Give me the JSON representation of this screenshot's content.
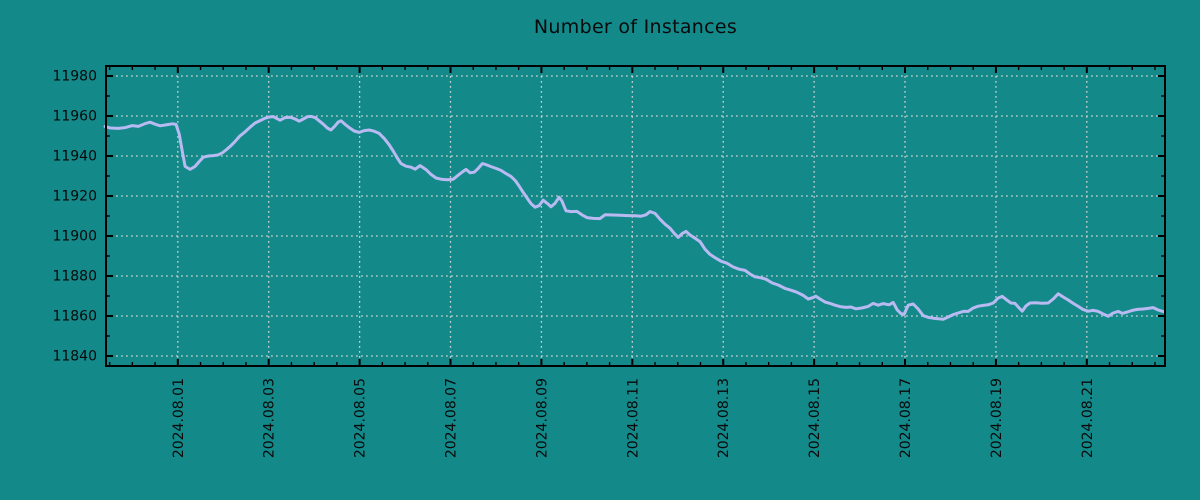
{
  "title": "Number of Instances",
  "colors": {
    "background": "#13898a",
    "line": "#b9baf2",
    "grid": "#ccd0cf",
    "axis": "#000000",
    "text": "#0a0a0a"
  },
  "chart_data": {
    "type": "line",
    "title": "Number of Instances",
    "legend": "none",
    "grid": "dotted at major ticks",
    "x_axis": {
      "unit": "days relative to 2024-08-01",
      "xlim_days": [
        -1.58,
        21.72
      ],
      "tick_days": [
        0,
        2,
        4,
        6,
        8,
        10,
        12,
        14,
        16,
        18,
        20
      ],
      "tick_labels": [
        "2024.08.01",
        "2024.08.03",
        "2024.08.05",
        "2024.08.07",
        "2024.08.09",
        "2024.08.11",
        "2024.08.13",
        "2024.08.15",
        "2024.08.17",
        "2024.08.19",
        "2024.08.21"
      ],
      "minor_step_days": 0.5,
      "label_rotation_deg": 90
    },
    "y_axis": {
      "ylim": [
        11835,
        11985
      ],
      "ticks": [
        11840,
        11860,
        11880,
        11900,
        11920,
        11940,
        11960,
        11980
      ],
      "minor_step": 10
    },
    "series": [
      {
        "name": "instances",
        "points": [
          [
            -1.6,
            11954.8
          ],
          [
            -1.49,
            11954.0
          ],
          [
            -1.31,
            11953.8
          ],
          [
            -1.16,
            11954.2
          ],
          [
            -1.0,
            11955.2
          ],
          [
            -0.87,
            11954.8
          ],
          [
            -0.72,
            11956.2
          ],
          [
            -0.61,
            11956.9
          ],
          [
            -0.5,
            11955.9
          ],
          [
            -0.39,
            11955.1
          ],
          [
            -0.23,
            11955.7
          ],
          [
            -0.12,
            11956.1
          ],
          [
            -0.04,
            11955.8
          ],
          [
            0.03,
            11951.0
          ],
          [
            0.1,
            11942.0
          ],
          [
            0.16,
            11934.8
          ],
          [
            0.27,
            11933.3
          ],
          [
            0.38,
            11934.8
          ],
          [
            0.47,
            11937.2
          ],
          [
            0.56,
            11939.4
          ],
          [
            0.67,
            11940.0
          ],
          [
            0.78,
            11940.2
          ],
          [
            0.89,
            11940.6
          ],
          [
            0.98,
            11941.6
          ],
          [
            1.06,
            11943.0
          ],
          [
            1.17,
            11945.2
          ],
          [
            1.26,
            11947.3
          ],
          [
            1.37,
            11950.1
          ],
          [
            1.48,
            11952.1
          ],
          [
            1.59,
            11954.4
          ],
          [
            1.7,
            11956.5
          ],
          [
            1.81,
            11957.7
          ],
          [
            1.92,
            11958.9
          ],
          [
            2.01,
            11959.5
          ],
          [
            2.1,
            11959.7
          ],
          [
            2.19,
            11958.6
          ],
          [
            2.25,
            11957.9
          ],
          [
            2.36,
            11959.2
          ],
          [
            2.47,
            11959.4
          ],
          [
            2.58,
            11958.5
          ],
          [
            2.67,
            11957.4
          ],
          [
            2.76,
            11958.5
          ],
          [
            2.85,
            11959.6
          ],
          [
            2.93,
            11959.8
          ],
          [
            3.02,
            11959.2
          ],
          [
            3.11,
            11957.6
          ],
          [
            3.2,
            11955.9
          ],
          [
            3.29,
            11954.0
          ],
          [
            3.37,
            11953.0
          ],
          [
            3.44,
            11954.6
          ],
          [
            3.53,
            11957.0
          ],
          [
            3.59,
            11957.6
          ],
          [
            3.68,
            11955.8
          ],
          [
            3.77,
            11954.2
          ],
          [
            3.88,
            11952.5
          ],
          [
            3.99,
            11951.8
          ],
          [
            4.1,
            11952.7
          ],
          [
            4.21,
            11953.0
          ],
          [
            4.32,
            11952.4
          ],
          [
            4.43,
            11951.3
          ],
          [
            4.54,
            11948.8
          ],
          [
            4.65,
            11945.6
          ],
          [
            4.74,
            11942.5
          ],
          [
            4.83,
            11939.0
          ],
          [
            4.91,
            11936.2
          ],
          [
            5.02,
            11934.9
          ],
          [
            5.13,
            11934.4
          ],
          [
            5.22,
            11933.4
          ],
          [
            5.33,
            11935.2
          ],
          [
            5.46,
            11933.2
          ],
          [
            5.57,
            11930.8
          ],
          [
            5.68,
            11929.0
          ],
          [
            5.79,
            11928.4
          ],
          [
            5.93,
            11928.1
          ],
          [
            6.06,
            11928.4
          ],
          [
            6.17,
            11930.4
          ],
          [
            6.26,
            11932.0
          ],
          [
            6.34,
            11933.3
          ],
          [
            6.43,
            11931.6
          ],
          [
            6.52,
            11931.9
          ],
          [
            6.61,
            11933.8
          ],
          [
            6.7,
            11936.2
          ],
          [
            6.78,
            11935.7
          ],
          [
            6.89,
            11934.7
          ],
          [
            7.0,
            11933.8
          ],
          [
            7.11,
            11932.8
          ],
          [
            7.22,
            11931.2
          ],
          [
            7.33,
            11929.8
          ],
          [
            7.42,
            11927.8
          ],
          [
            7.51,
            11925.0
          ],
          [
            7.6,
            11921.8
          ],
          [
            7.69,
            11918.8
          ],
          [
            7.77,
            11916.2
          ],
          [
            7.86,
            11914.4
          ],
          [
            7.95,
            11915.2
          ],
          [
            8.04,
            11917.9
          ],
          [
            8.13,
            11916.3
          ],
          [
            8.21,
            11914.6
          ],
          [
            8.3,
            11916.4
          ],
          [
            8.39,
            11919.4
          ],
          [
            8.45,
            11917.5
          ],
          [
            8.54,
            11912.6
          ],
          [
            8.65,
            11912.2
          ],
          [
            8.78,
            11912.3
          ],
          [
            8.89,
            11910.6
          ],
          [
            9.0,
            11909.2
          ],
          [
            9.14,
            11908.8
          ],
          [
            9.29,
            11908.7
          ],
          [
            9.4,
            11910.6
          ],
          [
            9.56,
            11910.5
          ],
          [
            9.73,
            11910.4
          ],
          [
            9.91,
            11910.2
          ],
          [
            10.06,
            11910.1
          ],
          [
            10.19,
            11909.9
          ],
          [
            10.3,
            11910.6
          ],
          [
            10.39,
            11912.2
          ],
          [
            10.5,
            11911.3
          ],
          [
            10.61,
            11908.4
          ],
          [
            10.72,
            11905.9
          ],
          [
            10.83,
            11903.9
          ],
          [
            10.92,
            11901.4
          ],
          [
            11.01,
            11899.3
          ],
          [
            11.1,
            11901.3
          ],
          [
            11.18,
            11902.3
          ],
          [
            11.27,
            11900.5
          ],
          [
            11.38,
            11898.9
          ],
          [
            11.49,
            11897.2
          ],
          [
            11.6,
            11893.4
          ],
          [
            11.71,
            11890.8
          ],
          [
            11.84,
            11888.9
          ],
          [
            11.95,
            11887.4
          ],
          [
            12.08,
            11886.4
          ],
          [
            12.22,
            11884.5
          ],
          [
            12.35,
            11883.4
          ],
          [
            12.48,
            11882.8
          ],
          [
            12.59,
            11881.0
          ],
          [
            12.7,
            11879.6
          ],
          [
            12.83,
            11879.1
          ],
          [
            12.94,
            11878.4
          ],
          [
            13.08,
            11876.5
          ],
          [
            13.21,
            11875.5
          ],
          [
            13.36,
            11873.8
          ],
          [
            13.49,
            11872.9
          ],
          [
            13.62,
            11871.9
          ],
          [
            13.76,
            11870.3
          ],
          [
            13.87,
            11868.5
          ],
          [
            13.95,
            11869.0
          ],
          [
            14.04,
            11869.9
          ],
          [
            14.13,
            11868.5
          ],
          [
            14.24,
            11867.0
          ],
          [
            14.35,
            11866.3
          ],
          [
            14.46,
            11865.4
          ],
          [
            14.57,
            11864.7
          ],
          [
            14.7,
            11864.3
          ],
          [
            14.81,
            11864.5
          ],
          [
            14.92,
            11863.6
          ],
          [
            15.05,
            11864.0
          ],
          [
            15.19,
            11864.8
          ],
          [
            15.3,
            11866.3
          ],
          [
            15.41,
            11865.4
          ],
          [
            15.52,
            11866.2
          ],
          [
            15.65,
            11865.6
          ],
          [
            15.74,
            11866.8
          ],
          [
            15.83,
            11863.0
          ],
          [
            15.91,
            11861.2
          ],
          [
            15.98,
            11860.8
          ],
          [
            16.07,
            11865.4
          ],
          [
            16.18,
            11866.0
          ],
          [
            16.29,
            11863.5
          ],
          [
            16.4,
            11860.2
          ],
          [
            16.51,
            11859.3
          ],
          [
            16.62,
            11858.9
          ],
          [
            16.73,
            11858.6
          ],
          [
            16.84,
            11858.4
          ],
          [
            16.95,
            11859.5
          ],
          [
            17.06,
            11860.7
          ],
          [
            17.17,
            11861.5
          ],
          [
            17.28,
            11862.3
          ],
          [
            17.39,
            11862.3
          ],
          [
            17.5,
            11864.0
          ],
          [
            17.61,
            11864.9
          ],
          [
            17.72,
            11865.3
          ],
          [
            17.83,
            11865.6
          ],
          [
            17.94,
            11866.5
          ],
          [
            18.05,
            11869.0
          ],
          [
            18.14,
            11869.8
          ],
          [
            18.25,
            11867.8
          ],
          [
            18.33,
            11866.5
          ],
          [
            18.42,
            11866.3
          ],
          [
            18.51,
            11864.0
          ],
          [
            18.58,
            11862.4
          ],
          [
            18.66,
            11865.0
          ],
          [
            18.75,
            11866.5
          ],
          [
            18.88,
            11866.6
          ],
          [
            19.01,
            11866.4
          ],
          [
            19.15,
            11866.5
          ],
          [
            19.26,
            11868.5
          ],
          [
            19.37,
            11871.1
          ],
          [
            19.48,
            11869.5
          ],
          [
            19.59,
            11868.0
          ],
          [
            19.7,
            11866.3
          ],
          [
            19.81,
            11864.8
          ],
          [
            19.92,
            11863.2
          ],
          [
            20.03,
            11862.4
          ],
          [
            20.14,
            11862.8
          ],
          [
            20.25,
            11862.3
          ],
          [
            20.36,
            11861.0
          ],
          [
            20.47,
            11859.9
          ],
          [
            20.58,
            11861.5
          ],
          [
            20.69,
            11862.3
          ],
          [
            20.78,
            11861.3
          ],
          [
            20.89,
            11862.0
          ],
          [
            21.0,
            11862.8
          ],
          [
            21.11,
            11863.3
          ],
          [
            21.24,
            11863.5
          ],
          [
            21.35,
            11863.8
          ],
          [
            21.46,
            11864.2
          ],
          [
            21.57,
            11863.0
          ],
          [
            21.68,
            11862.2
          ]
        ]
      }
    ]
  }
}
